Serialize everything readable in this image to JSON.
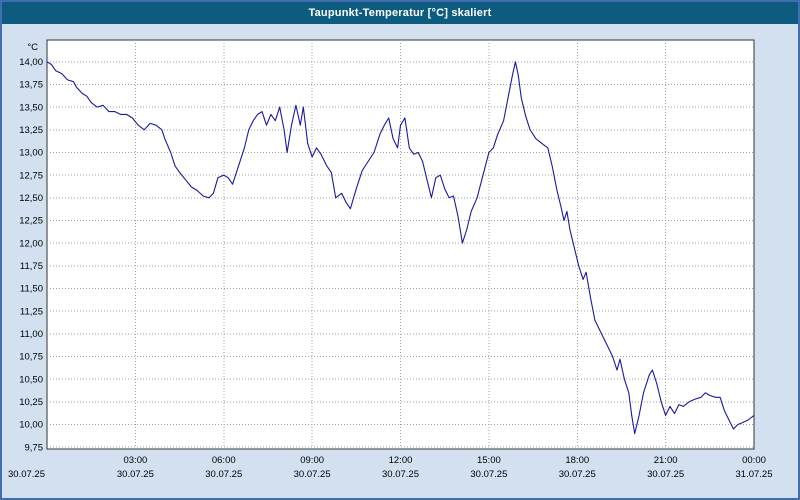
{
  "window": {
    "title": "Taupunkt-Temperatur [°C] skaliert"
  },
  "colors": {
    "titlebar_bg": "#0d5c80",
    "window_bg": "#d2e0f0",
    "window_border": "#3f6fb0",
    "plot_bg": "#ffffff",
    "plot_border": "#333333",
    "grid": "#a0a0a0",
    "line": "#1a1a9e"
  },
  "chart_data": {
    "type": "line",
    "title": "Taupunkt-Temperatur [°C] skaliert",
    "unit_label": "°C",
    "ylim": [
      9.73,
      14.24
    ],
    "xlim_hours": [
      0,
      24
    ],
    "grid": true,
    "legend": "none",
    "line_color": "#1a1a9e",
    "y_ticks": [
      {
        "value": 14.0,
        "label": "14,00"
      },
      {
        "value": 13.75,
        "label": "13,75"
      },
      {
        "value": 13.5,
        "label": "13,50"
      },
      {
        "value": 13.25,
        "label": "13,25"
      },
      {
        "value": 13.0,
        "label": "13,00"
      },
      {
        "value": 12.75,
        "label": "12,75"
      },
      {
        "value": 12.5,
        "label": "12,50"
      },
      {
        "value": 12.25,
        "label": "12,25"
      },
      {
        "value": 12.0,
        "label": "12,00"
      },
      {
        "value": 11.75,
        "label": "11,75"
      },
      {
        "value": 11.5,
        "label": "11,50"
      },
      {
        "value": 11.25,
        "label": "11,25"
      },
      {
        "value": 11.0,
        "label": "11,00"
      },
      {
        "value": 10.75,
        "label": "10,75"
      },
      {
        "value": 10.5,
        "label": "10,50"
      },
      {
        "value": 10.25,
        "label": "10,25"
      },
      {
        "value": 10.0,
        "label": "10,00"
      },
      {
        "value": 9.75,
        "label": "9,75"
      }
    ],
    "x_ticks": [
      {
        "h": 0,
        "time": "",
        "date": "30.07.25"
      },
      {
        "h": 3,
        "time": "03:00",
        "date": "30.07.25"
      },
      {
        "h": 6,
        "time": "06:00",
        "date": "30.07.25"
      },
      {
        "h": 9,
        "time": "09:00",
        "date": "30.07.25"
      },
      {
        "h": 12,
        "time": "12:00",
        "date": "30.07.25"
      },
      {
        "h": 15,
        "time": "15:00",
        "date": "30.07.25"
      },
      {
        "h": 18,
        "time": "18:00",
        "date": "30.07.25"
      },
      {
        "h": 21,
        "time": "21:00",
        "date": "30.07.25"
      },
      {
        "h": 24,
        "time": "00:00",
        "date": "31.07.25"
      }
    ],
    "points": [
      [
        0.0,
        14.0
      ],
      [
        0.15,
        13.97
      ],
      [
        0.3,
        13.9
      ],
      [
        0.5,
        13.87
      ],
      [
        0.7,
        13.8
      ],
      [
        0.9,
        13.78
      ],
      [
        1.0,
        13.72
      ],
      [
        1.2,
        13.65
      ],
      [
        1.35,
        13.62
      ],
      [
        1.5,
        13.55
      ],
      [
        1.7,
        13.5
      ],
      [
        1.9,
        13.52
      ],
      [
        2.1,
        13.45
      ],
      [
        2.3,
        13.45
      ],
      [
        2.5,
        13.42
      ],
      [
        2.7,
        13.42
      ],
      [
        2.9,
        13.38
      ],
      [
        3.1,
        13.3
      ],
      [
        3.3,
        13.25
      ],
      [
        3.5,
        13.32
      ],
      [
        3.7,
        13.3
      ],
      [
        3.9,
        13.25
      ],
      [
        4.0,
        13.15
      ],
      [
        4.2,
        13.0
      ],
      [
        4.35,
        12.85
      ],
      [
        4.5,
        12.78
      ],
      [
        4.7,
        12.7
      ],
      [
        4.9,
        12.62
      ],
      [
        5.1,
        12.58
      ],
      [
        5.3,
        12.52
      ],
      [
        5.5,
        12.5
      ],
      [
        5.65,
        12.55
      ],
      [
        5.8,
        12.72
      ],
      [
        6.0,
        12.75
      ],
      [
        6.15,
        12.72
      ],
      [
        6.3,
        12.65
      ],
      [
        6.5,
        12.85
      ],
      [
        6.7,
        13.05
      ],
      [
        6.85,
        13.25
      ],
      [
        7.0,
        13.35
      ],
      [
        7.15,
        13.42
      ],
      [
        7.3,
        13.45
      ],
      [
        7.45,
        13.3
      ],
      [
        7.6,
        13.42
      ],
      [
        7.75,
        13.35
      ],
      [
        7.9,
        13.5
      ],
      [
        8.05,
        13.25
      ],
      [
        8.15,
        13.0
      ],
      [
        8.3,
        13.3
      ],
      [
        8.45,
        13.52
      ],
      [
        8.6,
        13.3
      ],
      [
        8.7,
        13.5
      ],
      [
        8.85,
        13.1
      ],
      [
        9.0,
        12.95
      ],
      [
        9.15,
        13.05
      ],
      [
        9.3,
        12.98
      ],
      [
        9.5,
        12.85
      ],
      [
        9.65,
        12.78
      ],
      [
        9.8,
        12.5
      ],
      [
        10.0,
        12.55
      ],
      [
        10.15,
        12.45
      ],
      [
        10.3,
        12.38
      ],
      [
        10.5,
        12.6
      ],
      [
        10.7,
        12.8
      ],
      [
        10.9,
        12.9
      ],
      [
        11.1,
        13.0
      ],
      [
        11.3,
        13.2
      ],
      [
        11.45,
        13.3
      ],
      [
        11.6,
        13.38
      ],
      [
        11.75,
        13.15
      ],
      [
        11.9,
        13.05
      ],
      [
        12.0,
        13.3
      ],
      [
        12.15,
        13.38
      ],
      [
        12.3,
        13.05
      ],
      [
        12.45,
        12.98
      ],
      [
        12.6,
        13.0
      ],
      [
        12.75,
        12.9
      ],
      [
        12.9,
        12.7
      ],
      [
        13.05,
        12.5
      ],
      [
        13.2,
        12.72
      ],
      [
        13.35,
        12.75
      ],
      [
        13.5,
        12.6
      ],
      [
        13.65,
        12.5
      ],
      [
        13.8,
        12.52
      ],
      [
        13.95,
        12.3
      ],
      [
        14.1,
        12.0
      ],
      [
        14.25,
        12.15
      ],
      [
        14.4,
        12.35
      ],
      [
        14.6,
        12.5
      ],
      [
        14.8,
        12.75
      ],
      [
        15.0,
        13.0
      ],
      [
        15.15,
        13.05
      ],
      [
        15.3,
        13.2
      ],
      [
        15.5,
        13.35
      ],
      [
        15.65,
        13.6
      ],
      [
        15.8,
        13.85
      ],
      [
        15.9,
        14.0
      ],
      [
        16.0,
        13.85
      ],
      [
        16.1,
        13.6
      ],
      [
        16.25,
        13.4
      ],
      [
        16.4,
        13.25
      ],
      [
        16.6,
        13.15
      ],
      [
        16.8,
        13.1
      ],
      [
        17.0,
        13.05
      ],
      [
        17.15,
        12.85
      ],
      [
        17.3,
        12.6
      ],
      [
        17.45,
        12.4
      ],
      [
        17.55,
        12.25
      ],
      [
        17.65,
        12.35
      ],
      [
        17.75,
        12.15
      ],
      [
        17.9,
        11.95
      ],
      [
        18.05,
        11.75
      ],
      [
        18.2,
        11.6
      ],
      [
        18.3,
        11.68
      ],
      [
        18.45,
        11.4
      ],
      [
        18.6,
        11.15
      ],
      [
        18.75,
        11.05
      ],
      [
        18.9,
        10.95
      ],
      [
        19.05,
        10.85
      ],
      [
        19.2,
        10.75
      ],
      [
        19.35,
        10.6
      ],
      [
        19.45,
        10.72
      ],
      [
        19.6,
        10.5
      ],
      [
        19.75,
        10.35
      ],
      [
        19.85,
        10.1
      ],
      [
        19.95,
        9.9
      ],
      [
        20.1,
        10.1
      ],
      [
        20.25,
        10.35
      ],
      [
        20.45,
        10.55
      ],
      [
        20.55,
        10.6
      ],
      [
        20.7,
        10.45
      ],
      [
        20.85,
        10.25
      ],
      [
        21.0,
        10.1
      ],
      [
        21.15,
        10.2
      ],
      [
        21.3,
        10.12
      ],
      [
        21.45,
        10.22
      ],
      [
        21.6,
        10.2
      ],
      [
        21.8,
        10.25
      ],
      [
        22.0,
        10.28
      ],
      [
        22.2,
        10.3
      ],
      [
        22.35,
        10.35
      ],
      [
        22.5,
        10.32
      ],
      [
        22.7,
        10.3
      ],
      [
        22.85,
        10.3
      ],
      [
        23.0,
        10.15
      ],
      [
        23.15,
        10.05
      ],
      [
        23.3,
        9.95
      ],
      [
        23.45,
        10.0
      ],
      [
        23.6,
        10.02
      ],
      [
        23.8,
        10.05
      ],
      [
        24.0,
        10.1
      ]
    ]
  }
}
